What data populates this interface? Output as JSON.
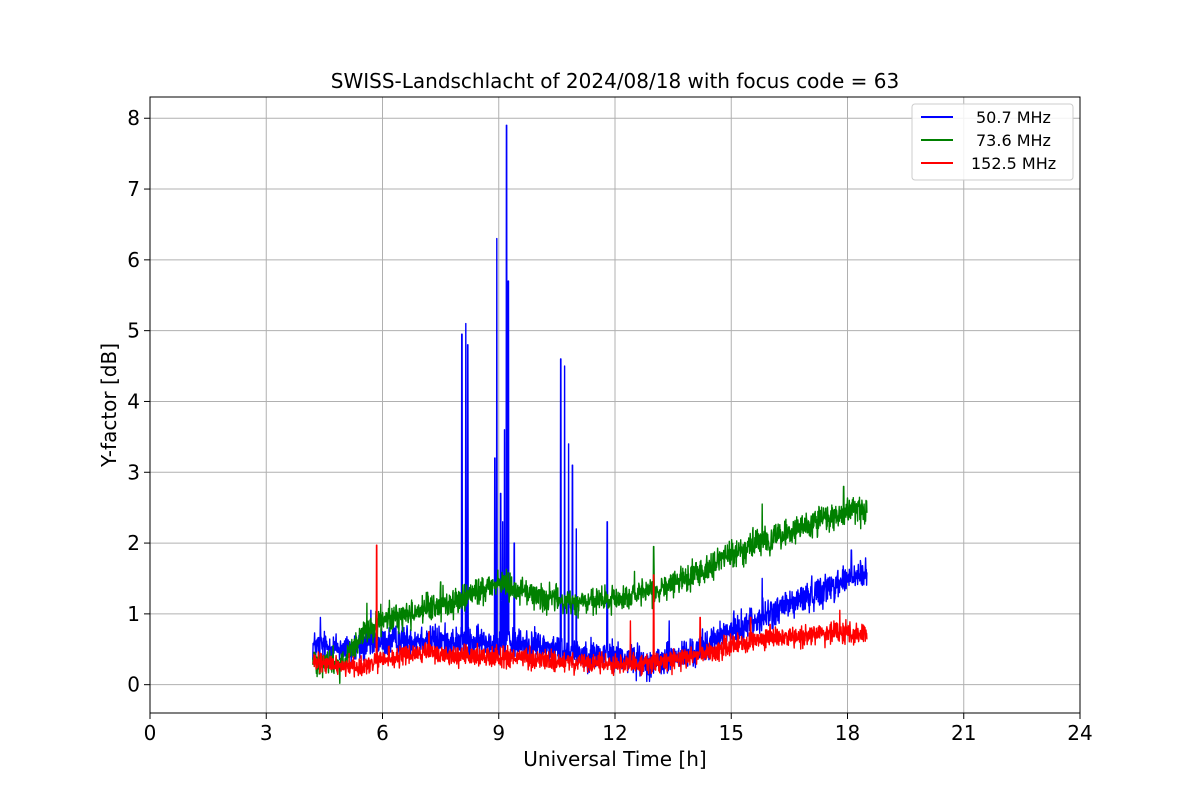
{
  "chart_data": {
    "type": "line",
    "title": "SWISS-Landschlacht of 2024/08/18 with focus code = 63",
    "xlabel": "Universal Time [h]",
    "ylabel": "Y-factor [dB]",
    "xlim": [
      0,
      24
    ],
    "ylim": [
      -0.4,
      8.3
    ],
    "xticks": [
      0,
      3,
      6,
      9,
      12,
      15,
      18,
      21,
      24
    ],
    "yticks": [
      0,
      1,
      2,
      3,
      4,
      5,
      6,
      7,
      8
    ],
    "grid": true,
    "legend_position": "top-right",
    "x_range_data": [
      4.2,
      18.5
    ],
    "series": [
      {
        "name": "50.7 MHz",
        "color": "#0000ff",
        "noise": 0.18,
        "baseline": [
          [
            4.2,
            0.55
          ],
          [
            5.2,
            0.5
          ],
          [
            6.0,
            0.6
          ],
          [
            7.0,
            0.65
          ],
          [
            8.0,
            0.6
          ],
          [
            9.0,
            0.6
          ],
          [
            10.0,
            0.55
          ],
          [
            11.0,
            0.45
          ],
          [
            12.0,
            0.4
          ],
          [
            13.0,
            0.3
          ],
          [
            14.0,
            0.45
          ],
          [
            15.0,
            0.75
          ],
          [
            16.0,
            1.0
          ],
          [
            17.0,
            1.25
          ],
          [
            18.0,
            1.5
          ],
          [
            18.5,
            1.55
          ]
        ],
        "spikes": [
          [
            4.4,
            0.95
          ],
          [
            5.7,
            1.05
          ],
          [
            8.05,
            4.95
          ],
          [
            8.15,
            5.1
          ],
          [
            8.2,
            4.8
          ],
          [
            8.9,
            3.2
          ],
          [
            8.95,
            6.3
          ],
          [
            9.05,
            2.7
          ],
          [
            9.1,
            2.3
          ],
          [
            9.15,
            3.6
          ],
          [
            9.2,
            7.9
          ],
          [
            9.25,
            5.7
          ],
          [
            9.4,
            2.0
          ],
          [
            10.6,
            4.6
          ],
          [
            10.7,
            4.5
          ],
          [
            10.8,
            3.4
          ],
          [
            10.9,
            3.1
          ],
          [
            11.0,
            2.2
          ],
          [
            11.8,
            2.3
          ],
          [
            13.4,
            0.9
          ],
          [
            15.8,
            1.5
          ],
          [
            16.4,
            1.3
          ],
          [
            17.3,
            1.5
          ],
          [
            18.1,
            1.9
          ]
        ]
      },
      {
        "name": "73.6 MHz",
        "color": "#008000",
        "noise": 0.16,
        "baseline": [
          [
            4.2,
            0.35
          ],
          [
            5.0,
            0.3
          ],
          [
            5.5,
            0.7
          ],
          [
            6.0,
            0.9
          ],
          [
            7.0,
            1.05
          ],
          [
            8.0,
            1.2
          ],
          [
            9.0,
            1.45
          ],
          [
            10.0,
            1.25
          ],
          [
            11.0,
            1.15
          ],
          [
            12.0,
            1.2
          ],
          [
            13.0,
            1.3
          ],
          [
            14.0,
            1.55
          ],
          [
            15.0,
            1.85
          ],
          [
            16.0,
            2.05
          ],
          [
            17.0,
            2.25
          ],
          [
            18.0,
            2.45
          ],
          [
            18.5,
            2.45
          ]
        ],
        "spikes": [
          [
            4.9,
            0.02
          ],
          [
            5.6,
            1.15
          ],
          [
            7.5,
            1.45
          ],
          [
            12.5,
            1.6
          ],
          [
            13.0,
            1.95
          ],
          [
            15.8,
            2.55
          ],
          [
            17.9,
            2.8
          ]
        ]
      },
      {
        "name": "152.5 MHz",
        "color": "#ff0000",
        "noise": 0.12,
        "baseline": [
          [
            4.2,
            0.3
          ],
          [
            5.5,
            0.25
          ],
          [
            6.0,
            0.35
          ],
          [
            7.0,
            0.45
          ],
          [
            8.0,
            0.4
          ],
          [
            9.0,
            0.4
          ],
          [
            10.0,
            0.35
          ],
          [
            11.0,
            0.3
          ],
          [
            12.0,
            0.3
          ],
          [
            13.0,
            0.3
          ],
          [
            14.0,
            0.4
          ],
          [
            15.0,
            0.55
          ],
          [
            16.0,
            0.65
          ],
          [
            17.0,
            0.7
          ],
          [
            18.0,
            0.75
          ],
          [
            18.5,
            0.7
          ]
        ],
        "spikes": [
          [
            5.85,
            1.97
          ],
          [
            7.2,
            0.75
          ],
          [
            12.4,
            0.9
          ],
          [
            13.0,
            1.55
          ],
          [
            14.2,
            0.95
          ],
          [
            15.5,
            0.95
          ],
          [
            16.0,
            0.85
          ],
          [
            17.8,
            1.05
          ]
        ]
      }
    ]
  }
}
